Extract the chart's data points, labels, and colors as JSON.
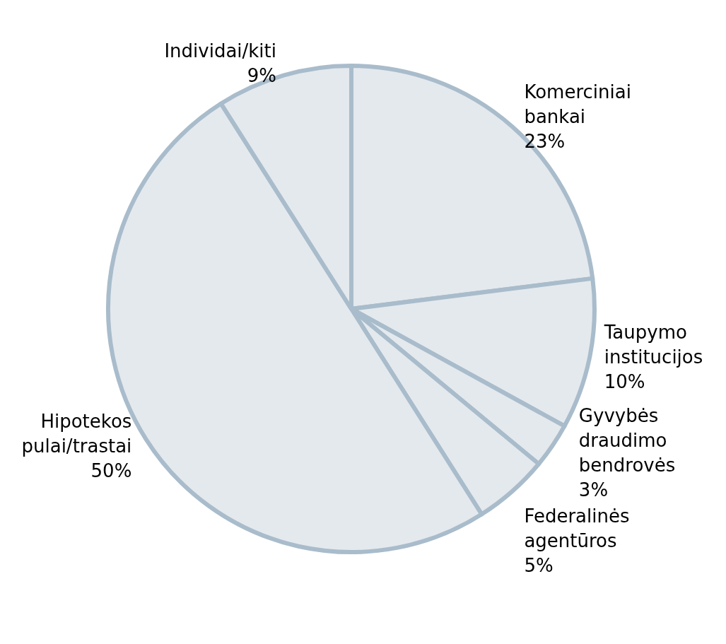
{
  "chart_data": {
    "type": "pie",
    "categories": [
      "Komerciniai bankai",
      "Taupymo institucijos",
      "Gyvybės draudimo bendrovės",
      "Federalinės agentūros",
      "Hipotekos pulai/trastai",
      "Individai/kiti"
    ],
    "values": [
      23,
      10,
      3,
      5,
      50,
      9
    ],
    "colors": [
      "#e4e9ee",
      "#e4e9ee",
      "#e4e9ee",
      "#e4e9ee",
      "#e4e9ee",
      "#e4e9ee"
    ],
    "value_labels": [
      "23%",
      "10%",
      "3%",
      "5%",
      "50%",
      "9%"
    ],
    "legend": false
  }
}
